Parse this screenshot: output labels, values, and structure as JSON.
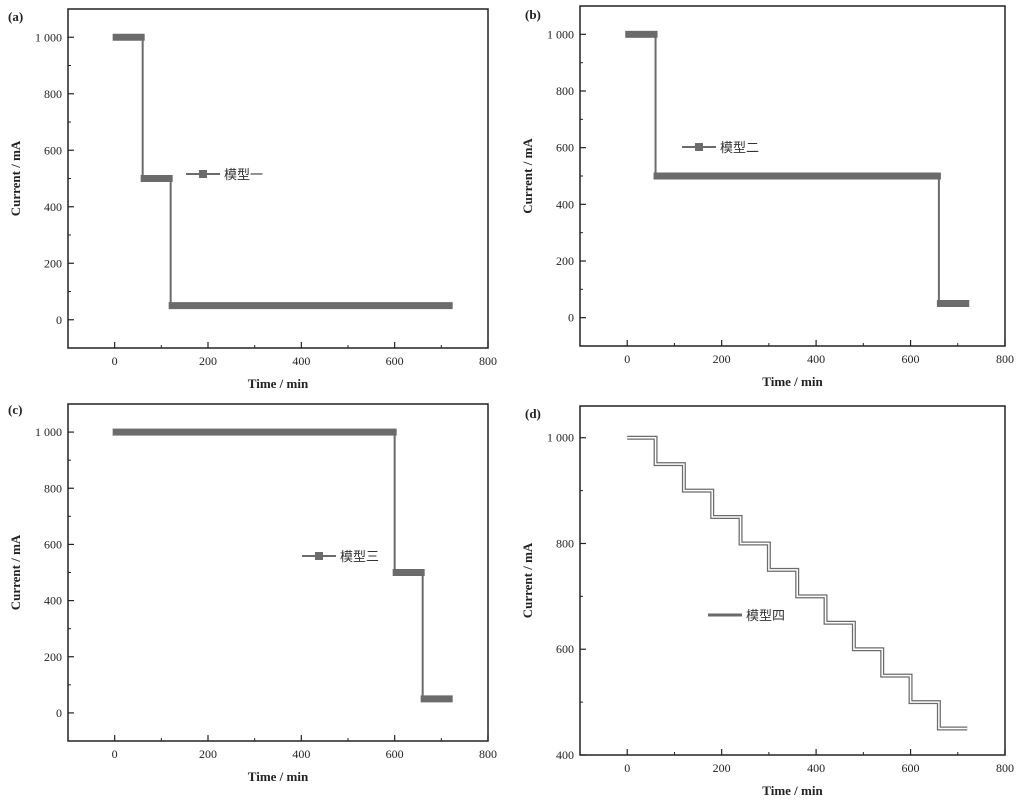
{
  "chart_data": [
    {
      "panel_label": "(a)",
      "type": "line",
      "xlabel": "Time / min",
      "ylabel": "Current / mA",
      "xlim": [
        -100,
        800
      ],
      "ylim": [
        -100,
        1100
      ],
      "xticks": [
        0,
        200,
        400,
        600,
        800
      ],
      "xtick_labels": [
        "0",
        "200",
        "400",
        "600",
        "800"
      ],
      "yticks": [
        0,
        200,
        400,
        600,
        800,
        1000
      ],
      "ytick_labels": [
        "0",
        "200",
        "400",
        "600",
        "800",
        "1 000"
      ],
      "grid": false,
      "legend_position": "right",
      "series": [
        {
          "name": "模型一",
          "color": "#6b6b6b",
          "style": "thick",
          "x": [
            0,
            60,
            60,
            120,
            120,
            720
          ],
          "y": [
            1000,
            1000,
            500,
            500,
            50,
            50
          ]
        }
      ]
    },
    {
      "panel_label": "(b)",
      "type": "line",
      "xlabel": "Time / min",
      "ylabel": "Current / mA",
      "xlim": [
        -100,
        800
      ],
      "ylim": [
        -100,
        1100
      ],
      "xticks": [
        0,
        200,
        400,
        600,
        800
      ],
      "xtick_labels": [
        "0",
        "200",
        "400",
        "600",
        "800"
      ],
      "yticks": [
        0,
        200,
        400,
        600,
        800,
        1000
      ],
      "ytick_labels": [
        "0",
        "200",
        "400",
        "600",
        "800",
        "1 000"
      ],
      "grid": false,
      "legend_position": "left",
      "series": [
        {
          "name": "模型二",
          "color": "#6b6b6b",
          "style": "thick",
          "x": [
            0,
            60,
            60,
            660,
            660,
            720
          ],
          "y": [
            1000,
            1000,
            500,
            500,
            50,
            50
          ]
        }
      ]
    },
    {
      "panel_label": "(c)",
      "type": "line",
      "xlabel": "Time / min",
      "ylabel": "Current / mA",
      "xlim": [
        -100,
        800
      ],
      "ylim": [
        -100,
        1100
      ],
      "xticks": [
        0,
        200,
        400,
        600,
        800
      ],
      "xtick_labels": [
        "0",
        "200",
        "400",
        "600",
        "800"
      ],
      "yticks": [
        0,
        200,
        400,
        600,
        800,
        1000
      ],
      "ytick_labels": [
        "0",
        "200",
        "400",
        "600",
        "800",
        "1 000"
      ],
      "grid": false,
      "legend_position": "center",
      "series": [
        {
          "name": "模型三",
          "color": "#6b6b6b",
          "style": "thick",
          "x": [
            0,
            600,
            600,
            660,
            660,
            720
          ],
          "y": [
            1000,
            1000,
            500,
            500,
            50,
            50
          ]
        }
      ]
    },
    {
      "panel_label": "(d)",
      "type": "line",
      "xlabel": "Time / min",
      "ylabel": "Current / mA",
      "xlim": [
        -100,
        800
      ],
      "ylim": [
        400,
        1060
      ],
      "xticks": [
        0,
        200,
        400,
        600,
        800
      ],
      "xtick_labels": [
        "0",
        "200",
        "400",
        "600",
        "800"
      ],
      "yticks": [
        400,
        600,
        800,
        1000
      ],
      "ytick_labels": [
        "400",
        "600",
        "800",
        "1 000"
      ],
      "grid": false,
      "legend_position": "left",
      "series": [
        {
          "name": "模型四",
          "color": "#6b6b6b",
          "style": "double",
          "x": [
            0,
            60,
            60,
            120,
            120,
            180,
            180,
            240,
            240,
            300,
            300,
            360,
            360,
            420,
            420,
            480,
            480,
            540,
            540,
            600,
            600,
            660,
            660,
            720
          ],
          "y": [
            1000,
            1000,
            950,
            950,
            900,
            900,
            850,
            850,
            800,
            800,
            750,
            750,
            700,
            700,
            650,
            650,
            600,
            600,
            550,
            550,
            500,
            500,
            450,
            450
          ]
        }
      ]
    }
  ]
}
